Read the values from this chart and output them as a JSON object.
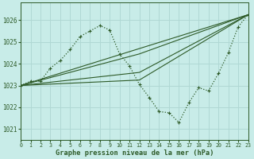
{
  "background_color": "#c8ece8",
  "grid_color": "#b0d8d4",
  "line_color": "#2d5a27",
  "title": "Graphe pression niveau de la mer (hPa)",
  "xlim": [
    0,
    23
  ],
  "ylim": [
    1020.5,
    1026.8
  ],
  "yticks": [
    1021,
    1022,
    1023,
    1024,
    1025,
    1026
  ],
  "xticks": [
    0,
    1,
    2,
    3,
    4,
    5,
    6,
    7,
    8,
    9,
    10,
    11,
    12,
    13,
    14,
    15,
    16,
    17,
    18,
    19,
    20,
    21,
    22,
    23
  ],
  "observed": {
    "x": [
      0,
      1,
      2,
      3,
      4,
      5,
      6,
      7,
      8,
      9,
      10,
      11,
      12,
      13,
      14,
      15,
      16,
      17,
      18,
      19,
      20,
      21,
      22,
      23
    ],
    "y": [
      1023.0,
      1023.2,
      1023.2,
      1023.8,
      1024.15,
      1024.65,
      1025.25,
      1025.5,
      1025.75,
      1025.55,
      1024.45,
      1023.9,
      1023.05,
      1022.45,
      1021.8,
      1021.75,
      1021.3,
      1022.2,
      1022.9,
      1022.75,
      1023.55,
      1024.5,
      1025.7,
      1026.25
    ]
  },
  "model_lines": [
    {
      "x": [
        0,
        23
      ],
      "y": [
        1023.0,
        1026.25
      ]
    },
    {
      "x": [
        0,
        12,
        23
      ],
      "y": [
        1023.0,
        1024.45,
        1026.25
      ]
    },
    {
      "x": [
        0,
        12,
        23
      ],
      "y": [
        1023.0,
        1023.6,
        1026.25
      ]
    },
    {
      "x": [
        0,
        12,
        23
      ],
      "y": [
        1023.0,
        1023.25,
        1026.25
      ]
    }
  ]
}
